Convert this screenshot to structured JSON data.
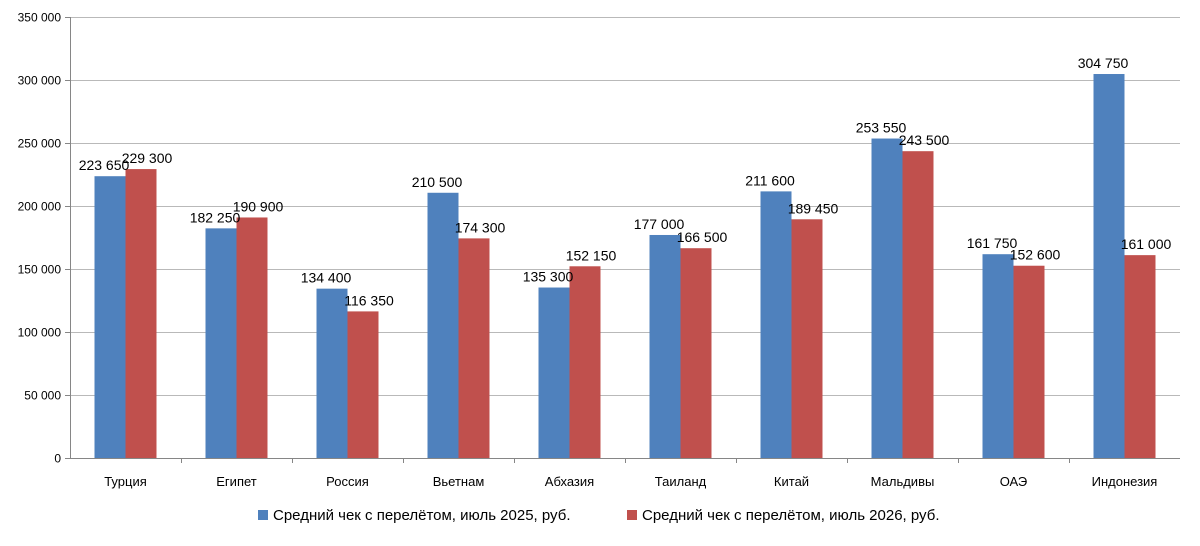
{
  "chart_data": {
    "type": "bar",
    "categories": [
      "Турция",
      "Египет",
      "Россия",
      "Вьетнам",
      "Абхазия",
      "Таиланд",
      "Китай",
      "Мальдивы",
      "ОАЭ",
      "Индонезия"
    ],
    "series": [
      {
        "name": "Средний чек с перелётом, июль 2025, руб.",
        "color": "#4f81bd",
        "values": [
          223650,
          182250,
          134400,
          210500,
          135300,
          177000,
          211600,
          253550,
          161750,
          304750
        ],
        "labels": [
          "223 650",
          "182 250",
          "134 400",
          "210 500",
          "135 300",
          "177 000",
          "211 600",
          "253 550",
          "161 750",
          "304 750"
        ]
      },
      {
        "name": "Средний чек с перелётом, июль 2026, руб.",
        "color": "#c0504d",
        "values": [
          229300,
          190900,
          116350,
          174300,
          152150,
          166500,
          189450,
          243500,
          152600,
          161000
        ],
        "labels": [
          "229 300",
          "190 900",
          "116 350",
          "174 300",
          "152 150",
          "166 500",
          "189 450",
          "243 500",
          "152 600",
          "161 000"
        ]
      }
    ],
    "yaxis": {
      "ticks": [
        0,
        50000,
        100000,
        150000,
        200000,
        250000,
        300000,
        350000
      ],
      "tick_labels": [
        "0",
        "50 000",
        "100 000",
        "150 000",
        "200 000",
        "250 000",
        "300 000",
        "350 000"
      ]
    },
    "ylim": [
      0,
      350000
    ],
    "grid": true,
    "legend_position": "bottom"
  }
}
